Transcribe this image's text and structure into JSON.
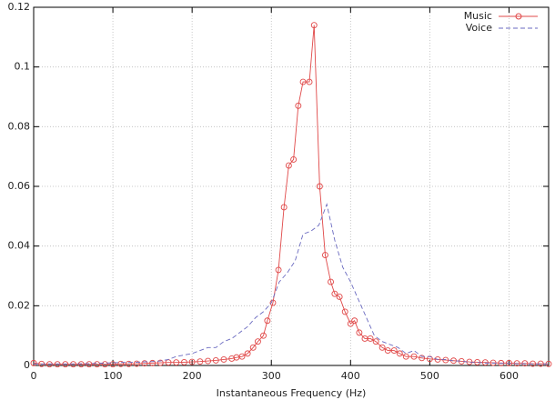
{
  "chart_data": {
    "type": "line",
    "x_label": "Instantaneous Frequency (Hz)",
    "xlim": [
      0,
      650
    ],
    "xticks": [
      0,
      100,
      200,
      300,
      400,
      500,
      600
    ],
    "ylim": [
      0,
      0.12
    ],
    "yticks": [
      0,
      0.02,
      0.04,
      0.06,
      0.08,
      0.1,
      0.12
    ],
    "grid": true,
    "legend": "top-right",
    "series": [
      {
        "name": "Music",
        "color": "#e04848",
        "marker": "circle",
        "dash": false,
        "x": [
          0,
          10,
          20,
          30,
          40,
          50,
          60,
          70,
          80,
          90,
          100,
          110,
          120,
          130,
          140,
          150,
          160,
          170,
          180,
          190,
          200,
          210,
          220,
          230,
          240,
          250,
          256,
          263,
          270,
          277,
          283,
          290,
          295,
          302,
          309,
          316,
          322,
          328,
          334,
          340,
          348,
          354,
          361,
          368,
          375,
          380,
          386,
          393,
          400,
          405,
          411,
          418,
          425,
          432,
          440,
          447,
          455,
          462,
          470,
          480,
          490,
          500,
          510,
          520,
          530,
          540,
          550,
          560,
          570,
          580,
          590,
          600,
          610,
          620,
          630,
          640,
          650
        ],
        "values": [
          0.0008,
          0.0005,
          0.0004,
          0.0004,
          0.0004,
          0.0004,
          0.0004,
          0.0004,
          0.0004,
          0.0004,
          0.0004,
          0.0005,
          0.0005,
          0.0006,
          0.0007,
          0.0008,
          0.0009,
          0.001,
          0.001,
          0.0011,
          0.0012,
          0.0013,
          0.0015,
          0.0017,
          0.002,
          0.0023,
          0.0027,
          0.003,
          0.004,
          0.006,
          0.008,
          0.01,
          0.015,
          0.021,
          0.032,
          0.053,
          0.067,
          0.069,
          0.087,
          0.095,
          0.095,
          0.114,
          0.06,
          0.037,
          0.028,
          0.024,
          0.023,
          0.018,
          0.014,
          0.015,
          0.011,
          0.009,
          0.009,
          0.008,
          0.006,
          0.005,
          0.005,
          0.004,
          0.003,
          0.003,
          0.0025,
          0.0022,
          0.002,
          0.0018,
          0.0016,
          0.0014,
          0.0012,
          0.0011,
          0.001,
          0.0009,
          0.0008,
          0.0008,
          0.0007,
          0.0007,
          0.0006,
          0.0006,
          0.0005
        ]
      },
      {
        "name": "Voice",
        "color": "#6a6ac0",
        "marker": "none",
        "dash": true,
        "x": [
          0,
          10,
          20,
          30,
          40,
          50,
          60,
          70,
          80,
          90,
          100,
          110,
          120,
          130,
          140,
          150,
          160,
          170,
          180,
          190,
          200,
          210,
          220,
          230,
          240,
          250,
          260,
          270,
          280,
          290,
          300,
          310,
          320,
          330,
          340,
          350,
          360,
          370,
          380,
          390,
          400,
          410,
          420,
          430,
          440,
          450,
          460,
          470,
          480,
          490,
          500,
          510,
          520,
          530,
          540,
          550,
          560,
          570,
          580,
          590,
          600,
          610,
          620,
          630,
          640,
          650
        ],
        "values": [
          0.0005,
          0.0005,
          0.0005,
          0.0005,
          0.0005,
          0.0005,
          0.0006,
          0.0006,
          0.0007,
          0.0008,
          0.0009,
          0.001,
          0.001,
          0.0011,
          0.0012,
          0.0013,
          0.0015,
          0.002,
          0.003,
          0.0035,
          0.004,
          0.005,
          0.006,
          0.006,
          0.008,
          0.009,
          0.011,
          0.013,
          0.016,
          0.018,
          0.021,
          0.028,
          0.031,
          0.035,
          0.044,
          0.045,
          0.047,
          0.054,
          0.042,
          0.033,
          0.028,
          0.022,
          0.016,
          0.01,
          0.008,
          0.007,
          0.006,
          0.004,
          0.005,
          0.003,
          0.003,
          0.002,
          0.002,
          0.0015,
          0.0015,
          0.001,
          0.001,
          0.0008,
          0.0008,
          0.0007,
          0.0007,
          0.0006,
          0.0006,
          0.0005,
          0.0005,
          0.0005
        ]
      }
    ]
  }
}
